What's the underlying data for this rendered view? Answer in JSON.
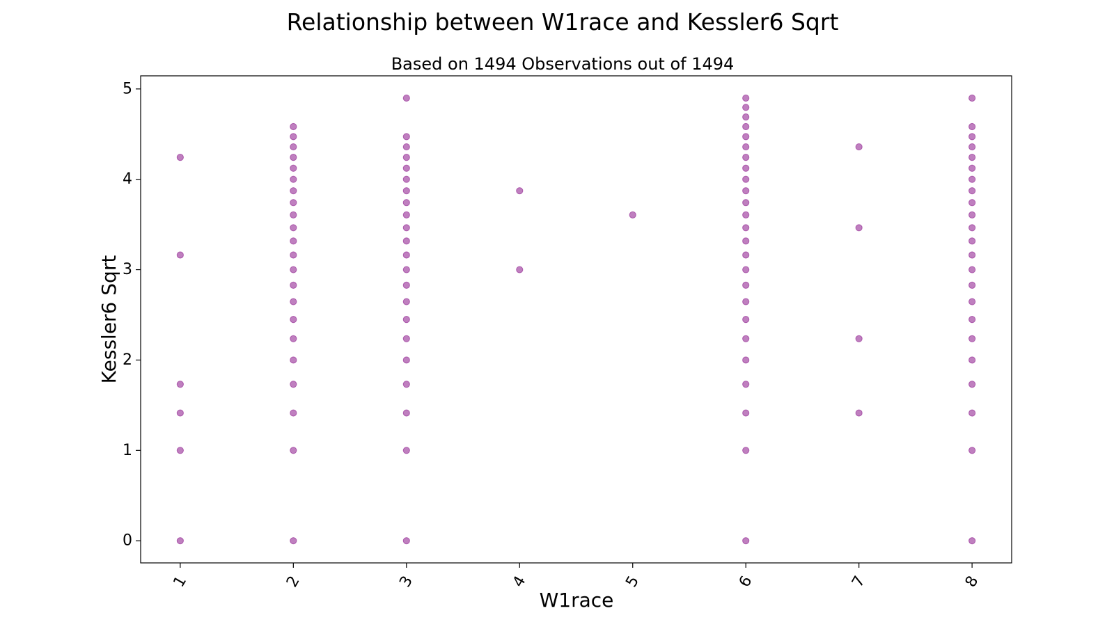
{
  "chart_data": {
    "type": "scatter",
    "title": "Relationship between W1race and Kessler6 Sqrt",
    "subtitle": "Based on 1494 Observations out of 1494",
    "xlabel": "W1race",
    "ylabel": "Kessler6 Sqrt",
    "xlim": [
      0.65,
      8.35
    ],
    "ylim": [
      -0.245,
      5.145
    ],
    "x_ticks": [
      1,
      2,
      3,
      4,
      5,
      6,
      7,
      8
    ],
    "x_tick_labels": [
      "1",
      "2",
      "3",
      "4",
      "5",
      "6",
      "7",
      "8"
    ],
    "y_ticks": [
      0,
      1,
      2,
      3,
      4,
      5
    ],
    "y_tick_labels": [
      "0",
      "1",
      "2",
      "3",
      "4",
      "5"
    ],
    "grid": false,
    "marker_color": "#800080",
    "marker_opacity": 0.5,
    "groups": [
      {
        "x": 1,
        "y": [
          0,
          1,
          1.414,
          1.732,
          3.162,
          4.243
        ]
      },
      {
        "x": 2,
        "y": [
          0,
          1,
          1.414,
          1.732,
          2,
          2.236,
          2.449,
          2.646,
          2.828,
          3,
          3.162,
          3.317,
          3.464,
          3.606,
          3.742,
          3.873,
          4,
          4.123,
          4.243,
          4.359,
          4.472,
          4.583
        ]
      },
      {
        "x": 3,
        "y": [
          0,
          1,
          1.414,
          1.732,
          2,
          2.236,
          2.449,
          2.646,
          2.828,
          3,
          3.162,
          3.317,
          3.464,
          3.606,
          3.742,
          3.873,
          4,
          4.123,
          4.243,
          4.359,
          4.472,
          4.899
        ]
      },
      {
        "x": 4,
        "y": [
          3,
          3.873
        ]
      },
      {
        "x": 5,
        "y": [
          3.606
        ]
      },
      {
        "x": 6,
        "y": [
          0,
          1,
          1.414,
          1.732,
          2,
          2.236,
          2.449,
          2.646,
          2.828,
          3,
          3.162,
          3.317,
          3.464,
          3.606,
          3.742,
          3.873,
          4,
          4.123,
          4.243,
          4.359,
          4.472,
          4.583,
          4.69,
          4.796,
          4.899
        ]
      },
      {
        "x": 7,
        "y": [
          1.414,
          2.236,
          3.464,
          4.359
        ]
      },
      {
        "x": 8,
        "y": [
          0,
          1,
          1.414,
          1.732,
          2,
          2.236,
          2.449,
          2.646,
          2.828,
          3,
          3.162,
          3.317,
          3.464,
          3.606,
          3.742,
          3.873,
          4,
          4.123,
          4.243,
          4.359,
          4.472,
          4.583,
          4.899
        ]
      }
    ]
  }
}
